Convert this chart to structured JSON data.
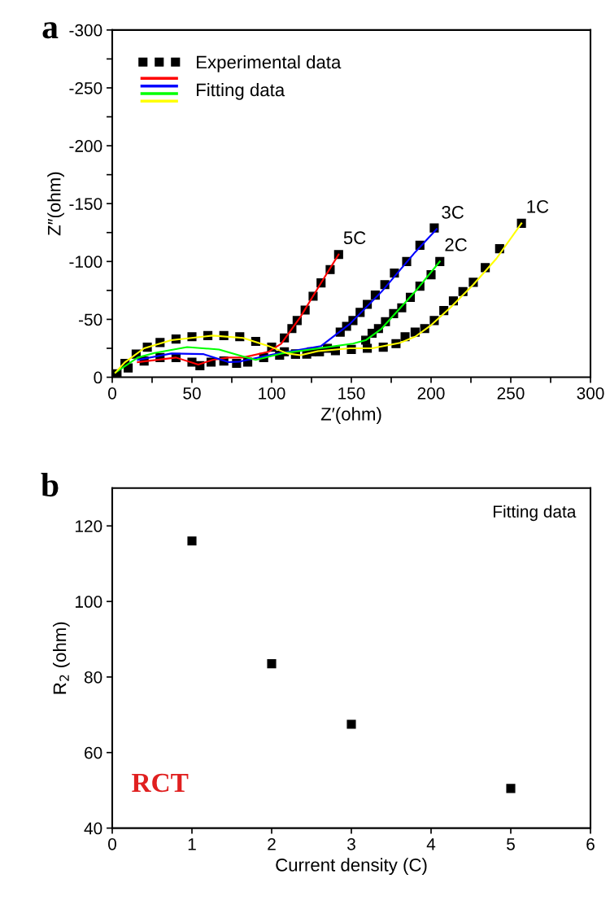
{
  "chart_data": [
    {
      "type": "scatter",
      "title": "a",
      "xlabel": "Z′(ohm)",
      "ylabel": "Z″(ohm)",
      "xlim": [
        0,
        300
      ],
      "ylim": [
        0,
        -300
      ],
      "xticks": [
        0,
        {
          "value": 25,
          "label": null
        },
        50,
        {
          "value": 75,
          "label": null
        },
        100,
        {
          "value": 125,
          "label": null
        },
        150,
        {
          "value": 175,
          "label": null
        },
        200,
        {
          "value": 225,
          "label": null
        },
        250,
        {
          "value": 275,
          "label": null
        },
        300
      ],
      "yticks": [
        0,
        {
          "value": -25,
          "label": null
        },
        -50,
        {
          "value": -75,
          "label": null
        },
        -100,
        {
          "value": -125,
          "label": null
        },
        -150,
        {
          "value": -175,
          "label": null
        },
        -200,
        {
          "value": -225,
          "label": null
        },
        -250,
        {
          "value": -275,
          "label": null
        },
        -300
      ],
      "legend": "top left",
      "annotations": [
        "Fitting data"
      ],
      "series": [
        {
          "name": "Experimental data",
          "type": "scatter",
          "marker": "square",
          "color": "#000000",
          "x": [
            3,
            8,
            15,
            22,
            30,
            40,
            50,
            60,
            70,
            80,
            90,
            100,
            108,
            115,
            122,
            130,
            140,
            150,
            160,
            170,
            178,
            10,
            20,
            30,
            40,
            50,
            55,
            62,
            70,
            78,
            85,
            95,
            105,
            115,
            125,
            135,
            108,
            112.7,
            116,
            121,
            126,
            131,
            136.7,
            142,
            143,
            147,
            151,
            155.5,
            160,
            165,
            171,
            177,
            184.7,
            193,
            202,
            159,
            163,
            167,
            171.4,
            176.5,
            181.6,
            187,
            193,
            200,
            205.5,
            183.7,
            190,
            196,
            202,
            208,
            214,
            220,
            226.5,
            234,
            243,
            256.7
          ],
          "values": [
            -3,
            -12,
            -20,
            -26,
            -30,
            -33,
            -35,
            -36,
            -36,
            -35,
            -31,
            -26,
            -22,
            -20,
            -20,
            -22,
            -23,
            -24,
            -25,
            -26,
            -29,
            -8,
            -14,
            -17,
            -17,
            -13,
            -10,
            -13,
            -14,
            -12,
            -13,
            -17,
            -19,
            -20,
            -22,
            -25,
            -34,
            -42,
            -49,
            -58,
            -70,
            -81.5,
            -93,
            -106,
            -39,
            -44,
            -49,
            -56,
            -63,
            -71,
            -80,
            -90,
            -100,
            -114,
            -129,
            -32,
            -38,
            -42,
            -48,
            -55,
            -60,
            -69,
            -78.7,
            -88.5,
            -100,
            -35,
            -39,
            -42,
            -49,
            -57.6,
            -66,
            -74,
            -82,
            -94.7,
            -111,
            -133
          ]
        },
        {
          "name": "5C",
          "type": "line",
          "marker": "none",
          "color": "#ff0000",
          "x": [
            16,
            40,
            54,
            63,
            73,
            82,
            98,
            106,
            118,
            129,
            142
          ],
          "values": [
            -13,
            -17,
            -11,
            -15,
            -17,
            -17,
            -22,
            -29,
            -52,
            -77,
            -106
          ]
        },
        {
          "name": "3C",
          "type": "line",
          "marker": "none",
          "color": "#0000ff",
          "x": [
            16,
            37,
            57,
            73,
            80,
            102,
            131,
            149,
            169,
            190,
            203.5
          ],
          "values": [
            -15,
            -20.5,
            -20,
            -13,
            -13.5,
            -20,
            -27,
            -46,
            -74,
            -108,
            -128
          ]
        },
        {
          "name": "2C",
          "type": "line",
          "marker": "none",
          "color": "#00ff00",
          "x": [
            2,
            16,
            26.5,
            47,
            67,
            82,
            90,
            106,
            151,
            159,
            169,
            190,
            205.5
          ],
          "values": [
            -4,
            -17,
            -21,
            -26,
            -24,
            -18,
            -15,
            -20.5,
            -29,
            -32,
            -42,
            -74,
            -100
          ]
        },
        {
          "name": "1C",
          "type": "line",
          "marker": "none",
          "color": "#ffff00",
          "x": [
            2,
            8,
            20,
            37,
            63,
            82,
            98,
            110,
            118,
            129,
            149,
            163,
            180,
            190,
            200,
            212,
            226.5,
            241,
            256.7
          ],
          "values": [
            -4,
            -13,
            -25,
            -32,
            -36,
            -34,
            -27,
            -20.5,
            -19,
            -22.5,
            -25,
            -25,
            -29.5,
            -35,
            -45,
            -60,
            -80,
            -102.5,
            -133
          ]
        }
      ]
    },
    {
      "type": "scatter",
      "title": "b",
      "xlabel": "Current density (C)",
      "ylabel": "R$_{2}$ (ohm)",
      "xlim": [
        0,
        6
      ],
      "ylim": [
        40,
        130
      ],
      "xticks": [
        0,
        1,
        2,
        3,
        4,
        5,
        6
      ],
      "yticks": [
        40,
        60,
        80,
        100,
        120
      ],
      "marker": "square",
      "annotations": [
        "Fitting data",
        "RCT"
      ],
      "series": [
        {
          "color": "#000000",
          "x": [
            1,
            2,
            3,
            5
          ],
          "values": [
            116,
            83.5,
            67.5,
            50.5
          ]
        }
      ]
    }
  ]
}
